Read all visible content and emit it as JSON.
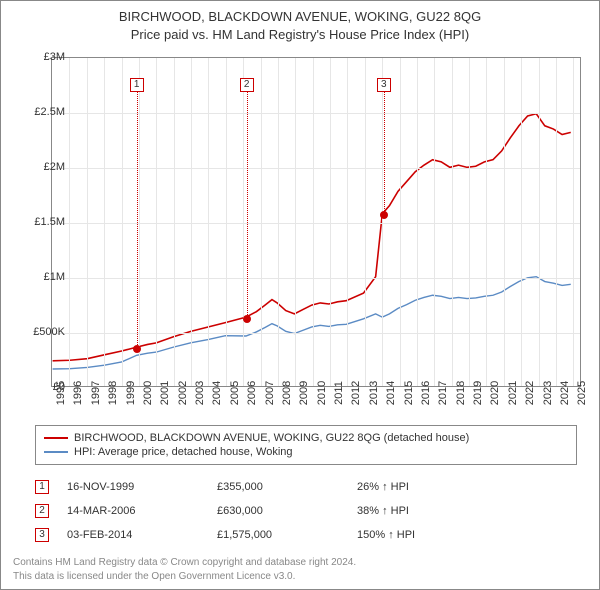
{
  "title_line1": "BIRCHWOOD, BLACKDOWN AVENUE, WOKING, GU22 8QG",
  "title_line2": "Price paid vs. HM Land Registry's House Price Index (HPI)",
  "chart": {
    "type": "line",
    "x_min": 1995,
    "x_max": 2025.5,
    "y_min": 0,
    "y_max": 3000000,
    "y_ticks": [
      {
        "v": 0,
        "label": "£0"
      },
      {
        "v": 500000,
        "label": "£500K"
      },
      {
        "v": 1000000,
        "label": "£1M"
      },
      {
        "v": 1500000,
        "label": "£1.5M"
      },
      {
        "v": 2000000,
        "label": "£2M"
      },
      {
        "v": 2500000,
        "label": "£2.5M"
      },
      {
        "v": 3000000,
        "label": "£3M"
      }
    ],
    "x_ticks": [
      1995,
      1996,
      1997,
      1998,
      1999,
      2000,
      2001,
      2002,
      2003,
      2004,
      2005,
      2006,
      2007,
      2008,
      2009,
      2010,
      2011,
      2012,
      2013,
      2014,
      2015,
      2016,
      2017,
      2018,
      2019,
      2020,
      2021,
      2022,
      2023,
      2024,
      2025
    ],
    "background_color": "#ffffff",
    "grid_color": "#e6e6e6",
    "series": [
      {
        "name": "property_price",
        "label": "BIRCHWOOD, BLACKDOWN AVENUE, WOKING, GU22 8QG (detached house)",
        "color": "#cc0000",
        "width": 1.6,
        "points": [
          [
            1995,
            230000
          ],
          [
            1996,
            235000
          ],
          [
            1997,
            250000
          ],
          [
            1998,
            285000
          ],
          [
            1999,
            320000
          ],
          [
            1999.87,
            355000
          ],
          [
            2000.5,
            380000
          ],
          [
            2001,
            395000
          ],
          [
            2002,
            450000
          ],
          [
            2003,
            500000
          ],
          [
            2004,
            540000
          ],
          [
            2005,
            580000
          ],
          [
            2006.2,
            630000
          ],
          [
            2006.8,
            680000
          ],
          [
            2007.3,
            740000
          ],
          [
            2007.7,
            790000
          ],
          [
            2008,
            760000
          ],
          [
            2008.5,
            690000
          ],
          [
            2009,
            660000
          ],
          [
            2009.5,
            700000
          ],
          [
            2010,
            740000
          ],
          [
            2010.5,
            760000
          ],
          [
            2011,
            750000
          ],
          [
            2011.5,
            770000
          ],
          [
            2012,
            780000
          ],
          [
            2013,
            850000
          ],
          [
            2013.7,
            1000000
          ],
          [
            2014.09,
            1575000
          ],
          [
            2014.5,
            1650000
          ],
          [
            2015,
            1780000
          ],
          [
            2015.5,
            1870000
          ],
          [
            2016,
            1960000
          ],
          [
            2016.5,
            2020000
          ],
          [
            2017,
            2070000
          ],
          [
            2017.5,
            2050000
          ],
          [
            2018,
            2000000
          ],
          [
            2018.5,
            2020000
          ],
          [
            2019,
            2000000
          ],
          [
            2019.5,
            2010000
          ],
          [
            2020,
            2050000
          ],
          [
            2020.5,
            2070000
          ],
          [
            2021,
            2150000
          ],
          [
            2021.5,
            2270000
          ],
          [
            2022,
            2380000
          ],
          [
            2022.5,
            2470000
          ],
          [
            2023,
            2490000
          ],
          [
            2023.5,
            2380000
          ],
          [
            2024,
            2350000
          ],
          [
            2024.5,
            2300000
          ],
          [
            2025,
            2320000
          ]
        ]
      },
      {
        "name": "hpi",
        "label": "HPI: Average price, detached house, Woking",
        "color": "#5b8bc4",
        "width": 1.4,
        "points": [
          [
            1995,
            155000
          ],
          [
            1996,
            158000
          ],
          [
            1997,
            170000
          ],
          [
            1998,
            190000
          ],
          [
            1999,
            220000
          ],
          [
            1999.87,
            281000
          ],
          [
            2000.5,
            300000
          ],
          [
            2001,
            310000
          ],
          [
            2002,
            355000
          ],
          [
            2003,
            395000
          ],
          [
            2004,
            425000
          ],
          [
            2005,
            460000
          ],
          [
            2006.2,
            457000
          ],
          [
            2006.8,
            495000
          ],
          [
            2007.3,
            535000
          ],
          [
            2007.7,
            570000
          ],
          [
            2008,
            550000
          ],
          [
            2008.5,
            500000
          ],
          [
            2009,
            480000
          ],
          [
            2009.5,
            510000
          ],
          [
            2010,
            540000
          ],
          [
            2010.5,
            555000
          ],
          [
            2011,
            545000
          ],
          [
            2011.5,
            560000
          ],
          [
            2012,
            565000
          ],
          [
            2013,
            615000
          ],
          [
            2013.7,
            660000
          ],
          [
            2014.09,
            630000
          ],
          [
            2014.5,
            660000
          ],
          [
            2015,
            710000
          ],
          [
            2015.5,
            745000
          ],
          [
            2016,
            785000
          ],
          [
            2016.5,
            810000
          ],
          [
            2017,
            830000
          ],
          [
            2017.5,
            820000
          ],
          [
            2018,
            800000
          ],
          [
            2018.5,
            810000
          ],
          [
            2019,
            800000
          ],
          [
            2019.5,
            805000
          ],
          [
            2020,
            820000
          ],
          [
            2020.5,
            830000
          ],
          [
            2021,
            860000
          ],
          [
            2021.5,
            910000
          ],
          [
            2022,
            955000
          ],
          [
            2022.5,
            990000
          ],
          [
            2023,
            1000000
          ],
          [
            2023.5,
            955000
          ],
          [
            2024,
            940000
          ],
          [
            2024.5,
            920000
          ],
          [
            2025,
            930000
          ]
        ]
      }
    ],
    "markers": [
      {
        "n": "1",
        "year": 1999.87,
        "price": 355000
      },
      {
        "n": "2",
        "year": 2006.2,
        "price": 630000
      },
      {
        "n": "3",
        "year": 2014.09,
        "price": 1575000
      }
    ]
  },
  "legend": {
    "items": [
      {
        "color": "#cc0000",
        "label_key": "chart.series.0.label"
      },
      {
        "color": "#5b8bc4",
        "label_key": "chart.series.1.label"
      }
    ]
  },
  "sales": [
    {
      "n": "1",
      "date": "16-NOV-1999",
      "price": "£355,000",
      "hpi": "26% ↑ HPI"
    },
    {
      "n": "2",
      "date": "14-MAR-2006",
      "price": "£630,000",
      "hpi": "38% ↑ HPI"
    },
    {
      "n": "3",
      "date": "03-FEB-2014",
      "price": "£1,575,000",
      "hpi": "150% ↑ HPI"
    }
  ],
  "footer_line1": "Contains HM Land Registry data © Crown copyright and database right 2024.",
  "footer_line2": "This data is licensed under the Open Government Licence v3.0."
}
